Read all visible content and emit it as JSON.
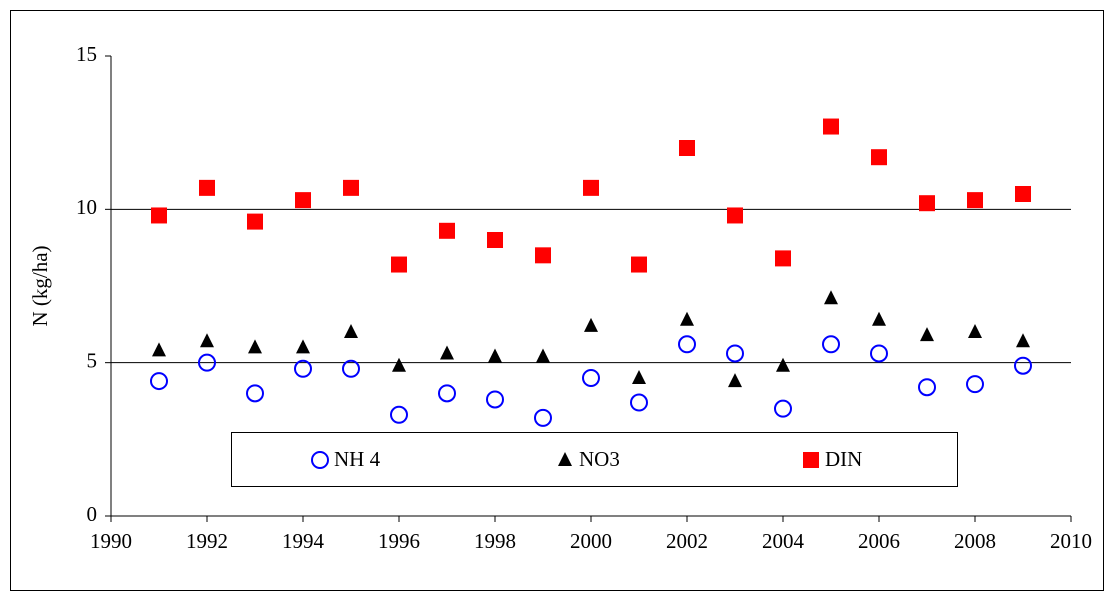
{
  "chart_data": {
    "type": "scatter",
    "y_label": "N  (kg/ha)",
    "x": [
      1991,
      1992,
      1993,
      1994,
      1995,
      1996,
      1997,
      1998,
      1999,
      2000,
      2001,
      2002,
      2003,
      2004,
      2005,
      2006,
      2007,
      2008,
      2009
    ],
    "series": [
      {
        "name": "NH 4",
        "color": "#0000ff",
        "marker": "circle",
        "values": [
          4.4,
          5.0,
          4.0,
          4.8,
          4.8,
          3.3,
          4.0,
          3.8,
          3.2,
          4.5,
          3.7,
          5.6,
          5.3,
          3.5,
          5.6,
          5.3,
          4.2,
          4.3,
          4.9
        ]
      },
      {
        "name": "NO3",
        "color": "#000000",
        "marker": "triangle",
        "values": [
          5.4,
          5.7,
          5.5,
          5.5,
          6.0,
          4.9,
          5.3,
          5.2,
          5.2,
          6.2,
          4.5,
          6.4,
          4.4,
          4.9,
          7.1,
          6.4,
          5.9,
          6.0,
          5.7
        ]
      },
      {
        "name": "DIN",
        "color": "#ff0000",
        "marker": "square",
        "values": [
          9.8,
          10.7,
          9.6,
          10.3,
          10.7,
          8.2,
          9.3,
          9.0,
          8.5,
          10.7,
          8.2,
          12.0,
          9.8,
          8.4,
          12.7,
          11.7,
          10.2,
          10.3,
          10.5
        ]
      }
    ],
    "xlim": [
      1990,
      2010
    ],
    "xticks": [
      1990,
      1992,
      1994,
      1996,
      1998,
      2000,
      2002,
      2004,
      2006,
      2008,
      2010
    ],
    "ylim": [
      0,
      15
    ],
    "yticks": [
      0,
      5,
      10,
      15
    ],
    "grid": true
  }
}
